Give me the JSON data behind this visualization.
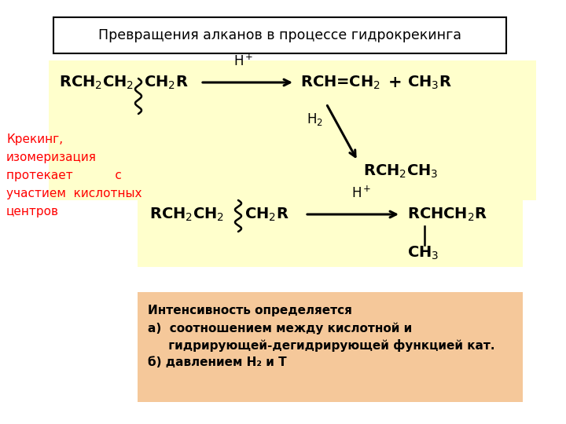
{
  "title": "Превращения алканов в процессе гидрокрекинга",
  "bg_color": "#ffffff",
  "title_box_color": "#ffffff",
  "title_border_color": "#000000",
  "reaction1_bg": "#ffffcc",
  "reaction2_bg": "#ffffcc",
  "bottom_bg": "#f5c89a",
  "red_text_color": "#ff0000",
  "black_text_color": "#000000",
  "left_text_lines": [
    "Крекинг,",
    "изомеризация",
    "протекает           с",
    "участием  кислотных",
    "центров"
  ],
  "bottom_line1": "Интенсивность определяется",
  "bottom_line2": "а)  соотношением между кислотной и",
  "bottom_line3": "     гидрирующей-дегидрирующей функцией кат.",
  "bottom_line4": "б) давлением H₂ и T"
}
